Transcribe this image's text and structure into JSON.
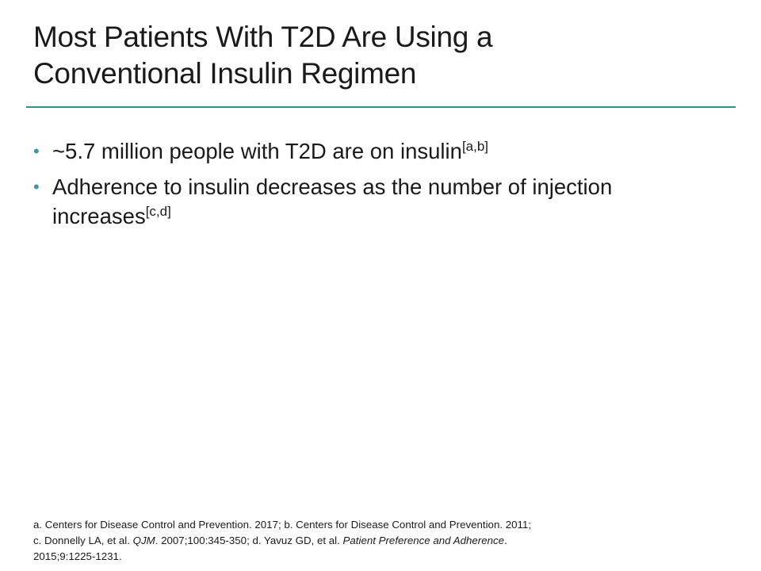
{
  "slide": {
    "title_line1": "Most Patients With T2D Are Using a",
    "title_line2": "Conventional Insulin Regimen",
    "accent_color": "#3a8a91",
    "bullet_color": "#3a9aa3",
    "bullet_glyph": "•",
    "bullets": [
      {
        "text": "~5.7 million people with T2D are on insulin",
        "cite": "[a,b]"
      },
      {
        "text": "Adherence to insulin decreases as the number of injection increases",
        "cite": "[c,d]"
      }
    ],
    "references": {
      "part1": "a. Centers for Disease Control and Prevention. 2017; b. Centers for Disease Control and Prevention. 2011;",
      "part2": "c. Donnelly LA, et al. ",
      "journal1": "QJM",
      "part3": ". 2007;100:345-350; d. Yavuz GD, et al. ",
      "journal2": "Patient Preference and Adherence",
      "part4": ".",
      "part5": "2015;9:1225-1231."
    }
  }
}
